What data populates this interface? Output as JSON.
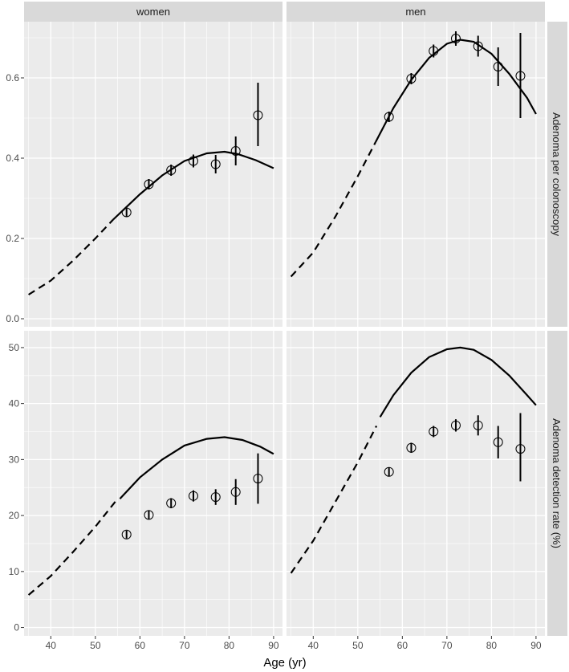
{
  "chart_data": {
    "type": "scatter",
    "xlabel": "Age (yr)",
    "x_ticks": [
      40,
      50,
      60,
      70,
      80,
      90
    ],
    "xlim": [
      34,
      92
    ],
    "columns": [
      "women",
      "men"
    ],
    "colors": {
      "panel_bg": "#ebebeb",
      "grid_major": "#ffffff",
      "strip_bg": "#d9d9d9",
      "ink": "#000000",
      "tick_label": "#4d4d4d"
    },
    "rows": [
      {
        "label": "Adenoma per colonoscopy",
        "ylim": [
          -0.02,
          0.74
        ],
        "y_ticks": [
          0.0,
          0.2,
          0.4,
          0.6
        ],
        "y_tick_labels": [
          "0.0",
          "0.2",
          "0.4",
          "0.6"
        ],
        "panels": [
          {
            "group": "women",
            "curve_dashed": [
              [
                35,
                0.06
              ],
              [
                40,
                0.095
              ],
              [
                45,
                0.145
              ],
              [
                50,
                0.2
              ],
              [
                54,
                0.247
              ]
            ],
            "curve_solid": [
              [
                54,
                0.247
              ],
              [
                60,
                0.31
              ],
              [
                65,
                0.357
              ],
              [
                70,
                0.393
              ],
              [
                75,
                0.412
              ],
              [
                79,
                0.416
              ],
              [
                82,
                0.41
              ],
              [
                86,
                0.395
              ],
              [
                90,
                0.375
              ]
            ],
            "points": [
              {
                "x": 57,
                "y": 0.265,
                "lo": 0.255,
                "hi": 0.275
              },
              {
                "x": 62,
                "y": 0.335,
                "lo": 0.322,
                "hi": 0.348
              },
              {
                "x": 67,
                "y": 0.37,
                "lo": 0.356,
                "hi": 0.384
              },
              {
                "x": 72,
                "y": 0.393,
                "lo": 0.377,
                "hi": 0.409
              },
              {
                "x": 77,
                "y": 0.385,
                "lo": 0.362,
                "hi": 0.408
              },
              {
                "x": 81.5,
                "y": 0.418,
                "lo": 0.382,
                "hi": 0.454
              },
              {
                "x": 86.5,
                "y": 0.507,
                "lo": 0.43,
                "hi": 0.588
              }
            ]
          },
          {
            "group": "men",
            "curve_dashed": [
              [
                35,
                0.105
              ],
              [
                40,
                0.165
              ],
              [
                45,
                0.255
              ],
              [
                50,
                0.355
              ],
              [
                54,
                0.44
              ]
            ],
            "curve_solid": [
              [
                54,
                0.44
              ],
              [
                58,
                0.525
              ],
              [
                62,
                0.595
              ],
              [
                66,
                0.65
              ],
              [
                70,
                0.685
              ],
              [
                73,
                0.695
              ],
              [
                76,
                0.69
              ],
              [
                80,
                0.66
              ],
              [
                84,
                0.61
              ],
              [
                88,
                0.55
              ],
              [
                90,
                0.51
              ]
            ],
            "points": [
              {
                "x": 57,
                "y": 0.503,
                "lo": 0.49,
                "hi": 0.516
              },
              {
                "x": 62,
                "y": 0.598,
                "lo": 0.584,
                "hi": 0.612
              },
              {
                "x": 67,
                "y": 0.667,
                "lo": 0.651,
                "hi": 0.683
              },
              {
                "x": 72,
                "y": 0.698,
                "lo": 0.68,
                "hi": 0.716
              },
              {
                "x": 77,
                "y": 0.679,
                "lo": 0.653,
                "hi": 0.705
              },
              {
                "x": 81.5,
                "y": 0.628,
                "lo": 0.58,
                "hi": 0.676
              },
              {
                "x": 86.5,
                "y": 0.605,
                "lo": 0.5,
                "hi": 0.712
              }
            ]
          }
        ]
      },
      {
        "label": "Adenoma detection rate (%)",
        "ylim": [
          -1.5,
          53
        ],
        "y_ticks": [
          0,
          10,
          20,
          30,
          40,
          50
        ],
        "y_tick_labels": [
          "0",
          "10",
          "20",
          "30",
          "40",
          "50"
        ],
        "panels": [
          {
            "group": "women",
            "curve_dashed": [
              [
                35,
                5.8
              ],
              [
                40,
                9.2
              ],
              [
                45,
                13.5
              ],
              [
                50,
                18
              ],
              [
                54.5,
                22.5
              ]
            ],
            "curve_solid": [
              [
                55.5,
                23
              ],
              [
                60,
                26.8
              ],
              [
                65,
                30
              ],
              [
                70,
                32.5
              ],
              [
                75,
                33.7
              ],
              [
                79,
                34
              ],
              [
                83,
                33.5
              ],
              [
                87,
                32.3
              ],
              [
                90,
                31
              ]
            ],
            "points": [
              {
                "x": 57,
                "y": 16.6,
                "lo": 15.9,
                "hi": 17.3
              },
              {
                "x": 62,
                "y": 20.1,
                "lo": 19.3,
                "hi": 20.9
              },
              {
                "x": 67,
                "y": 22.2,
                "lo": 21.3,
                "hi": 23.1
              },
              {
                "x": 72,
                "y": 23.5,
                "lo": 22.5,
                "hi": 24.5
              },
              {
                "x": 77,
                "y": 23.3,
                "lo": 21.9,
                "hi": 24.7
              },
              {
                "x": 81.5,
                "y": 24.2,
                "lo": 21.9,
                "hi": 26.5
              },
              {
                "x": 86.5,
                "y": 26.6,
                "lo": 22.1,
                "hi": 31.1
              }
            ]
          },
          {
            "group": "men",
            "curve_dashed": [
              [
                35,
                9.7
              ],
              [
                40,
                15.5
              ],
              [
                45,
                22.5
              ],
              [
                50,
                29.5
              ],
              [
                54.2,
                36
              ]
            ],
            "curve_solid": [
              [
                55,
                37.6
              ],
              [
                58,
                41.5
              ],
              [
                62,
                45.5
              ],
              [
                66,
                48.3
              ],
              [
                70,
                49.7
              ],
              [
                73,
                50
              ],
              [
                76,
                49.6
              ],
              [
                80,
                47.8
              ],
              [
                84,
                45
              ],
              [
                88,
                41.5
              ],
              [
                90,
                39.7
              ]
            ],
            "points": [
              {
                "x": 57,
                "y": 27.8,
                "lo": 27,
                "hi": 28.6
              },
              {
                "x": 62,
                "y": 32.1,
                "lo": 31.2,
                "hi": 33
              },
              {
                "x": 67,
                "y": 35,
                "lo": 34,
                "hi": 36
              },
              {
                "x": 72,
                "y": 36.1,
                "lo": 35,
                "hi": 37.2
              },
              {
                "x": 77,
                "y": 36.1,
                "lo": 34.3,
                "hi": 37.9
              },
              {
                "x": 81.5,
                "y": 33.1,
                "lo": 30.2,
                "hi": 36
              },
              {
                "x": 86.5,
                "y": 31.9,
                "lo": 26.1,
                "hi": 38.3
              }
            ]
          }
        ]
      }
    ]
  }
}
